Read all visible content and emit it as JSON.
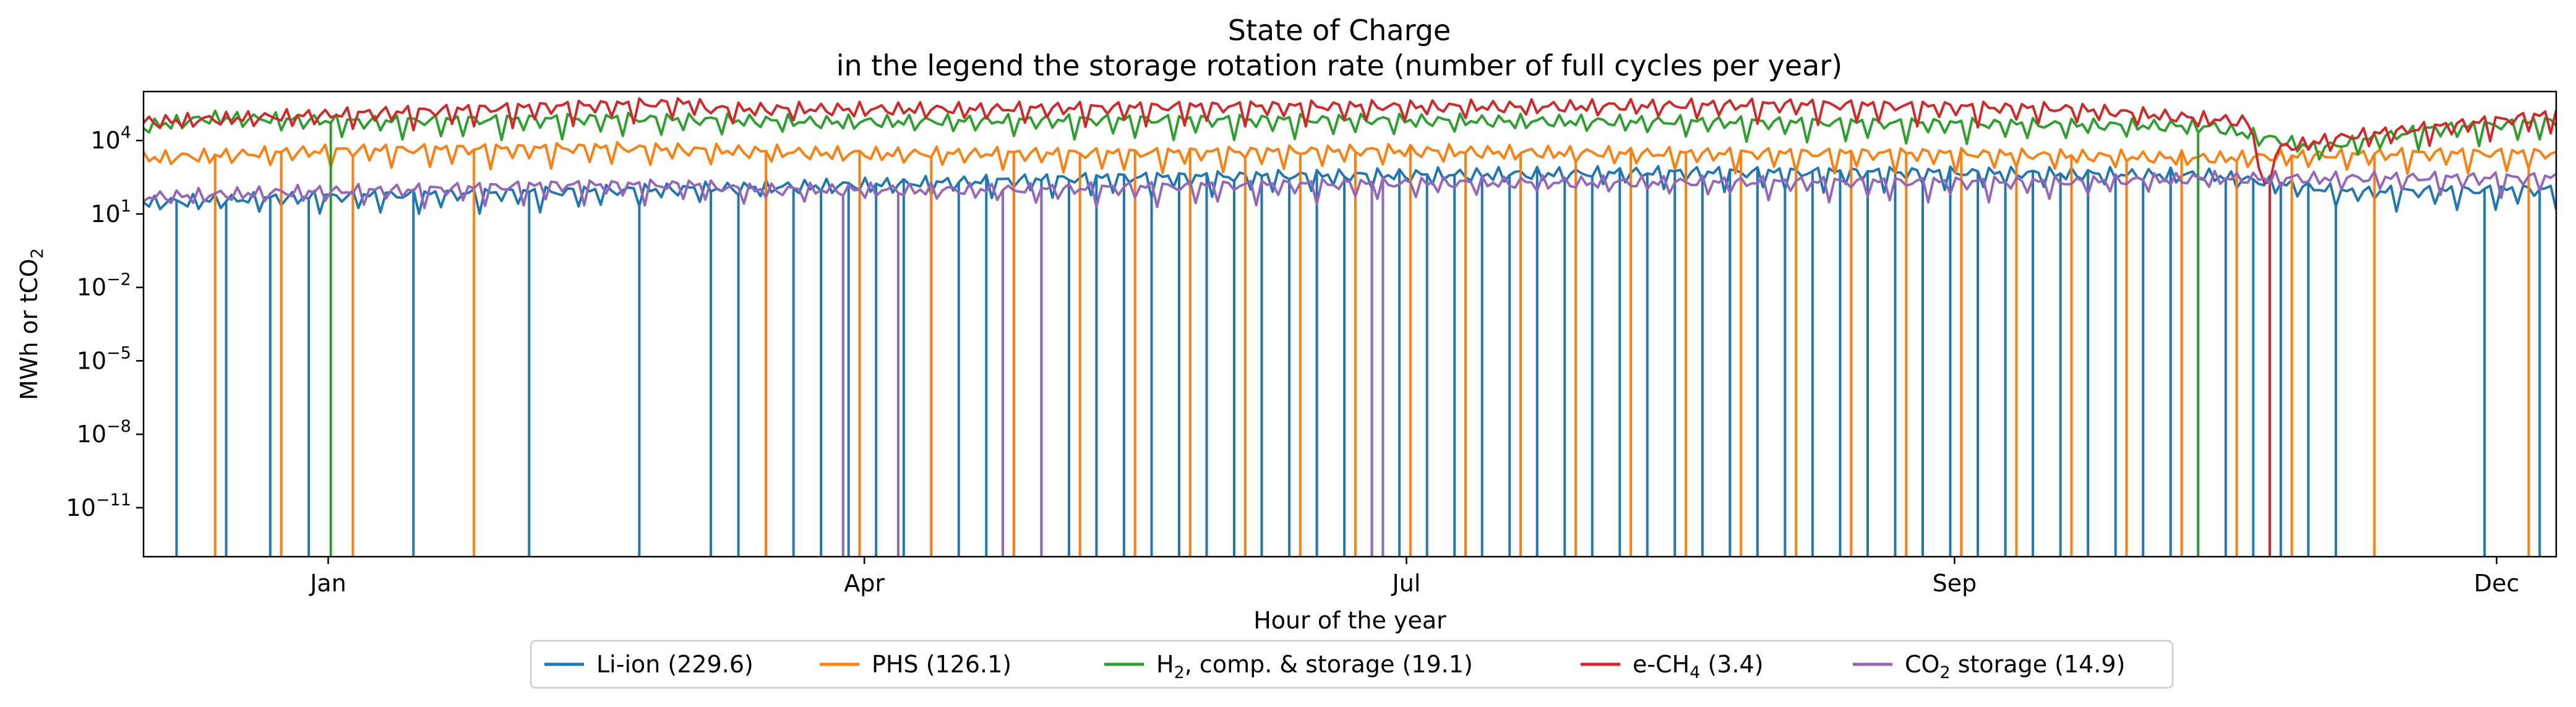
{
  "chart_data": {
    "type": "line",
    "title": "State of Charge",
    "subtitle": "in the legend the storage rotation rate (number of full cycles per year)",
    "xlabel": "Hour of the year",
    "ylabel": "MWh or tCO2",
    "ylabel_parts": {
      "base": "MWh or tCO",
      "sub": "2"
    },
    "y_scale": "log",
    "ylim": [
      1e-13,
      1000000.0
    ],
    "xlim": [
      0,
      8760
    ],
    "x_ticks": [
      {
        "label": "Jan",
        "hour": 744
      },
      {
        "label": "Apr",
        "hour": 2904
      },
      {
        "label": "Jul",
        "hour": 5088
      },
      {
        "label": "Sep",
        "hour": 7296
      },
      {
        "label": "Dec",
        "hour": 9480
      }
    ],
    "y_ticks": [
      {
        "label": "10",
        "exp": "4",
        "value": 10000.0
      },
      {
        "label": "10",
        "exp": "1",
        "value": 10.0
      },
      {
        "label": "10",
        "exp": "−2",
        "value": 0.01
      },
      {
        "label": "10",
        "exp": "−5",
        "value": 1e-05
      },
      {
        "label": "10",
        "exp": "−8",
        "value": 1e-08
      },
      {
        "label": "10",
        "exp": "−11",
        "value": 1e-11
      }
    ],
    "grid": false,
    "legend_position": "bottom-center",
    "series": [
      {
        "name": "Li-ion (229.6)",
        "legend_parts": {
          "base": "Li-ion (229.6)",
          "sub": "",
          "tail": ""
        },
        "color": "#1f77b4",
        "points": [
          [
            0,
            30
          ],
          [
            600,
            50
          ],
          [
            1500,
            80
          ],
          [
            2500,
            150
          ],
          [
            3500,
            300
          ],
          [
            4500,
            400
          ],
          [
            5500,
            500
          ],
          [
            6500,
            500
          ],
          [
            7500,
            400
          ],
          [
            8000,
            80
          ],
          [
            8760,
            100
          ]
        ],
        "spikes_to_zero_hours": [
          120,
          300,
          450,
          600,
          980,
          1400,
          1800,
          2050,
          2150,
          2250,
          2350,
          2450,
          2550,
          2650,
          2750,
          2850,
          2950,
          3050,
          3150,
          3250,
          3350,
          3450,
          3550,
          3650,
          3750,
          3850,
          3950,
          4050,
          4150,
          4250,
          4350,
          4450,
          4550,
          4650,
          4750,
          4850,
          4950,
          5050,
          5150,
          5250,
          5350,
          5450,
          5550,
          5650,
          5750,
          5850,
          5950,
          6050,
          6150,
          6250,
          6350,
          6450,
          6550,
          6650,
          6750,
          6850,
          6950,
          7050,
          7150,
          7250,
          7350,
          7450,
          7550,
          7650,
          7750,
          7850,
          7950,
          8500,
          8700
        ]
      },
      {
        "name": "PHS (126.1)",
        "legend_parts": {
          "base": "PHS (126.1)",
          "sub": "",
          "tail": ""
        },
        "color": "#ff7f0e",
        "points": [
          [
            0,
            2000
          ],
          [
            700,
            4000
          ],
          [
            1700,
            5000
          ],
          [
            2600,
            3000
          ],
          [
            3500,
            3000
          ],
          [
            4500,
            4000
          ],
          [
            5500,
            3000
          ],
          [
            6500,
            3000
          ],
          [
            7500,
            2000
          ],
          [
            8300,
            3000
          ],
          [
            8760,
            3000
          ]
        ],
        "spikes_to_zero_hours": [
          250,
          500,
          750,
          1200,
          2250,
          2600,
          2850,
          3150,
          3400,
          3600,
          3800,
          4000,
          4200,
          4400,
          4600,
          4800,
          5000,
          5200,
          5400,
          5600,
          5800,
          6000,
          6200,
          6400,
          6600,
          6800,
          7000,
          7200,
          7400,
          7600,
          7800,
          8100,
          8650
        ]
      },
      {
        "name": "H2, comp. & storage (19.1)",
        "legend_parts": {
          "base": "H",
          "sub": "2",
          "tail": ", comp. & storage (19.1)"
        },
        "color": "#2ca02c",
        "points": [
          [
            0,
            40000
          ],
          [
            250,
            90000
          ],
          [
            800,
            60000
          ],
          [
            1700,
            80000
          ],
          [
            2500,
            60000
          ],
          [
            3500,
            70000
          ],
          [
            4500,
            70000
          ],
          [
            5500,
            60000
          ],
          [
            6500,
            50000
          ],
          [
            7500,
            40000
          ],
          [
            7900,
            5000
          ],
          [
            8300,
            30000
          ],
          [
            8760,
            60000
          ]
        ],
        "spikes_to_zero_hours": [
          680,
          7450
        ]
      },
      {
        "name": "e-CH4 (3.4)",
        "legend_parts": {
          "base": "e-CH",
          "sub": "4",
          "tail": " (3.4)"
        },
        "color": "#d62728",
        "points": [
          [
            0,
            60000
          ],
          [
            500,
            100000
          ],
          [
            1500,
            250000
          ],
          [
            2000,
            350000
          ],
          [
            2050,
            200000
          ],
          [
            3000,
            200000
          ],
          [
            4000,
            250000
          ],
          [
            5000,
            250000
          ],
          [
            6000,
            300000
          ],
          [
            7000,
            200000
          ],
          [
            7650,
            60000
          ],
          [
            7700,
            100
          ],
          [
            7750,
            5000
          ],
          [
            8000,
            15000
          ],
          [
            8760,
            120000
          ]
        ],
        "spikes_to_zero_hours": [
          7720
        ]
      },
      {
        "name": "CO2 storage (14.9)",
        "legend_parts": {
          "base": "CO",
          "sub": "2",
          "tail": " storage (14.9)"
        },
        "color": "#9467bd",
        "points": [
          [
            0,
            50
          ],
          [
            500,
            80
          ],
          [
            1000,
            100
          ],
          [
            1500,
            150
          ],
          [
            2000,
            150
          ],
          [
            2200,
            100
          ],
          [
            3200,
            100
          ],
          [
            4000,
            150
          ],
          [
            5000,
            200
          ],
          [
            6000,
            200
          ],
          [
            7000,
            200
          ],
          [
            7500,
            300
          ],
          [
            8000,
            300
          ],
          [
            8760,
            300
          ]
        ],
        "spikes_to_zero_hours": [
          2530,
          2740,
          3120,
          3250,
          3260,
          4450,
          4500
        ]
      }
    ]
  }
}
